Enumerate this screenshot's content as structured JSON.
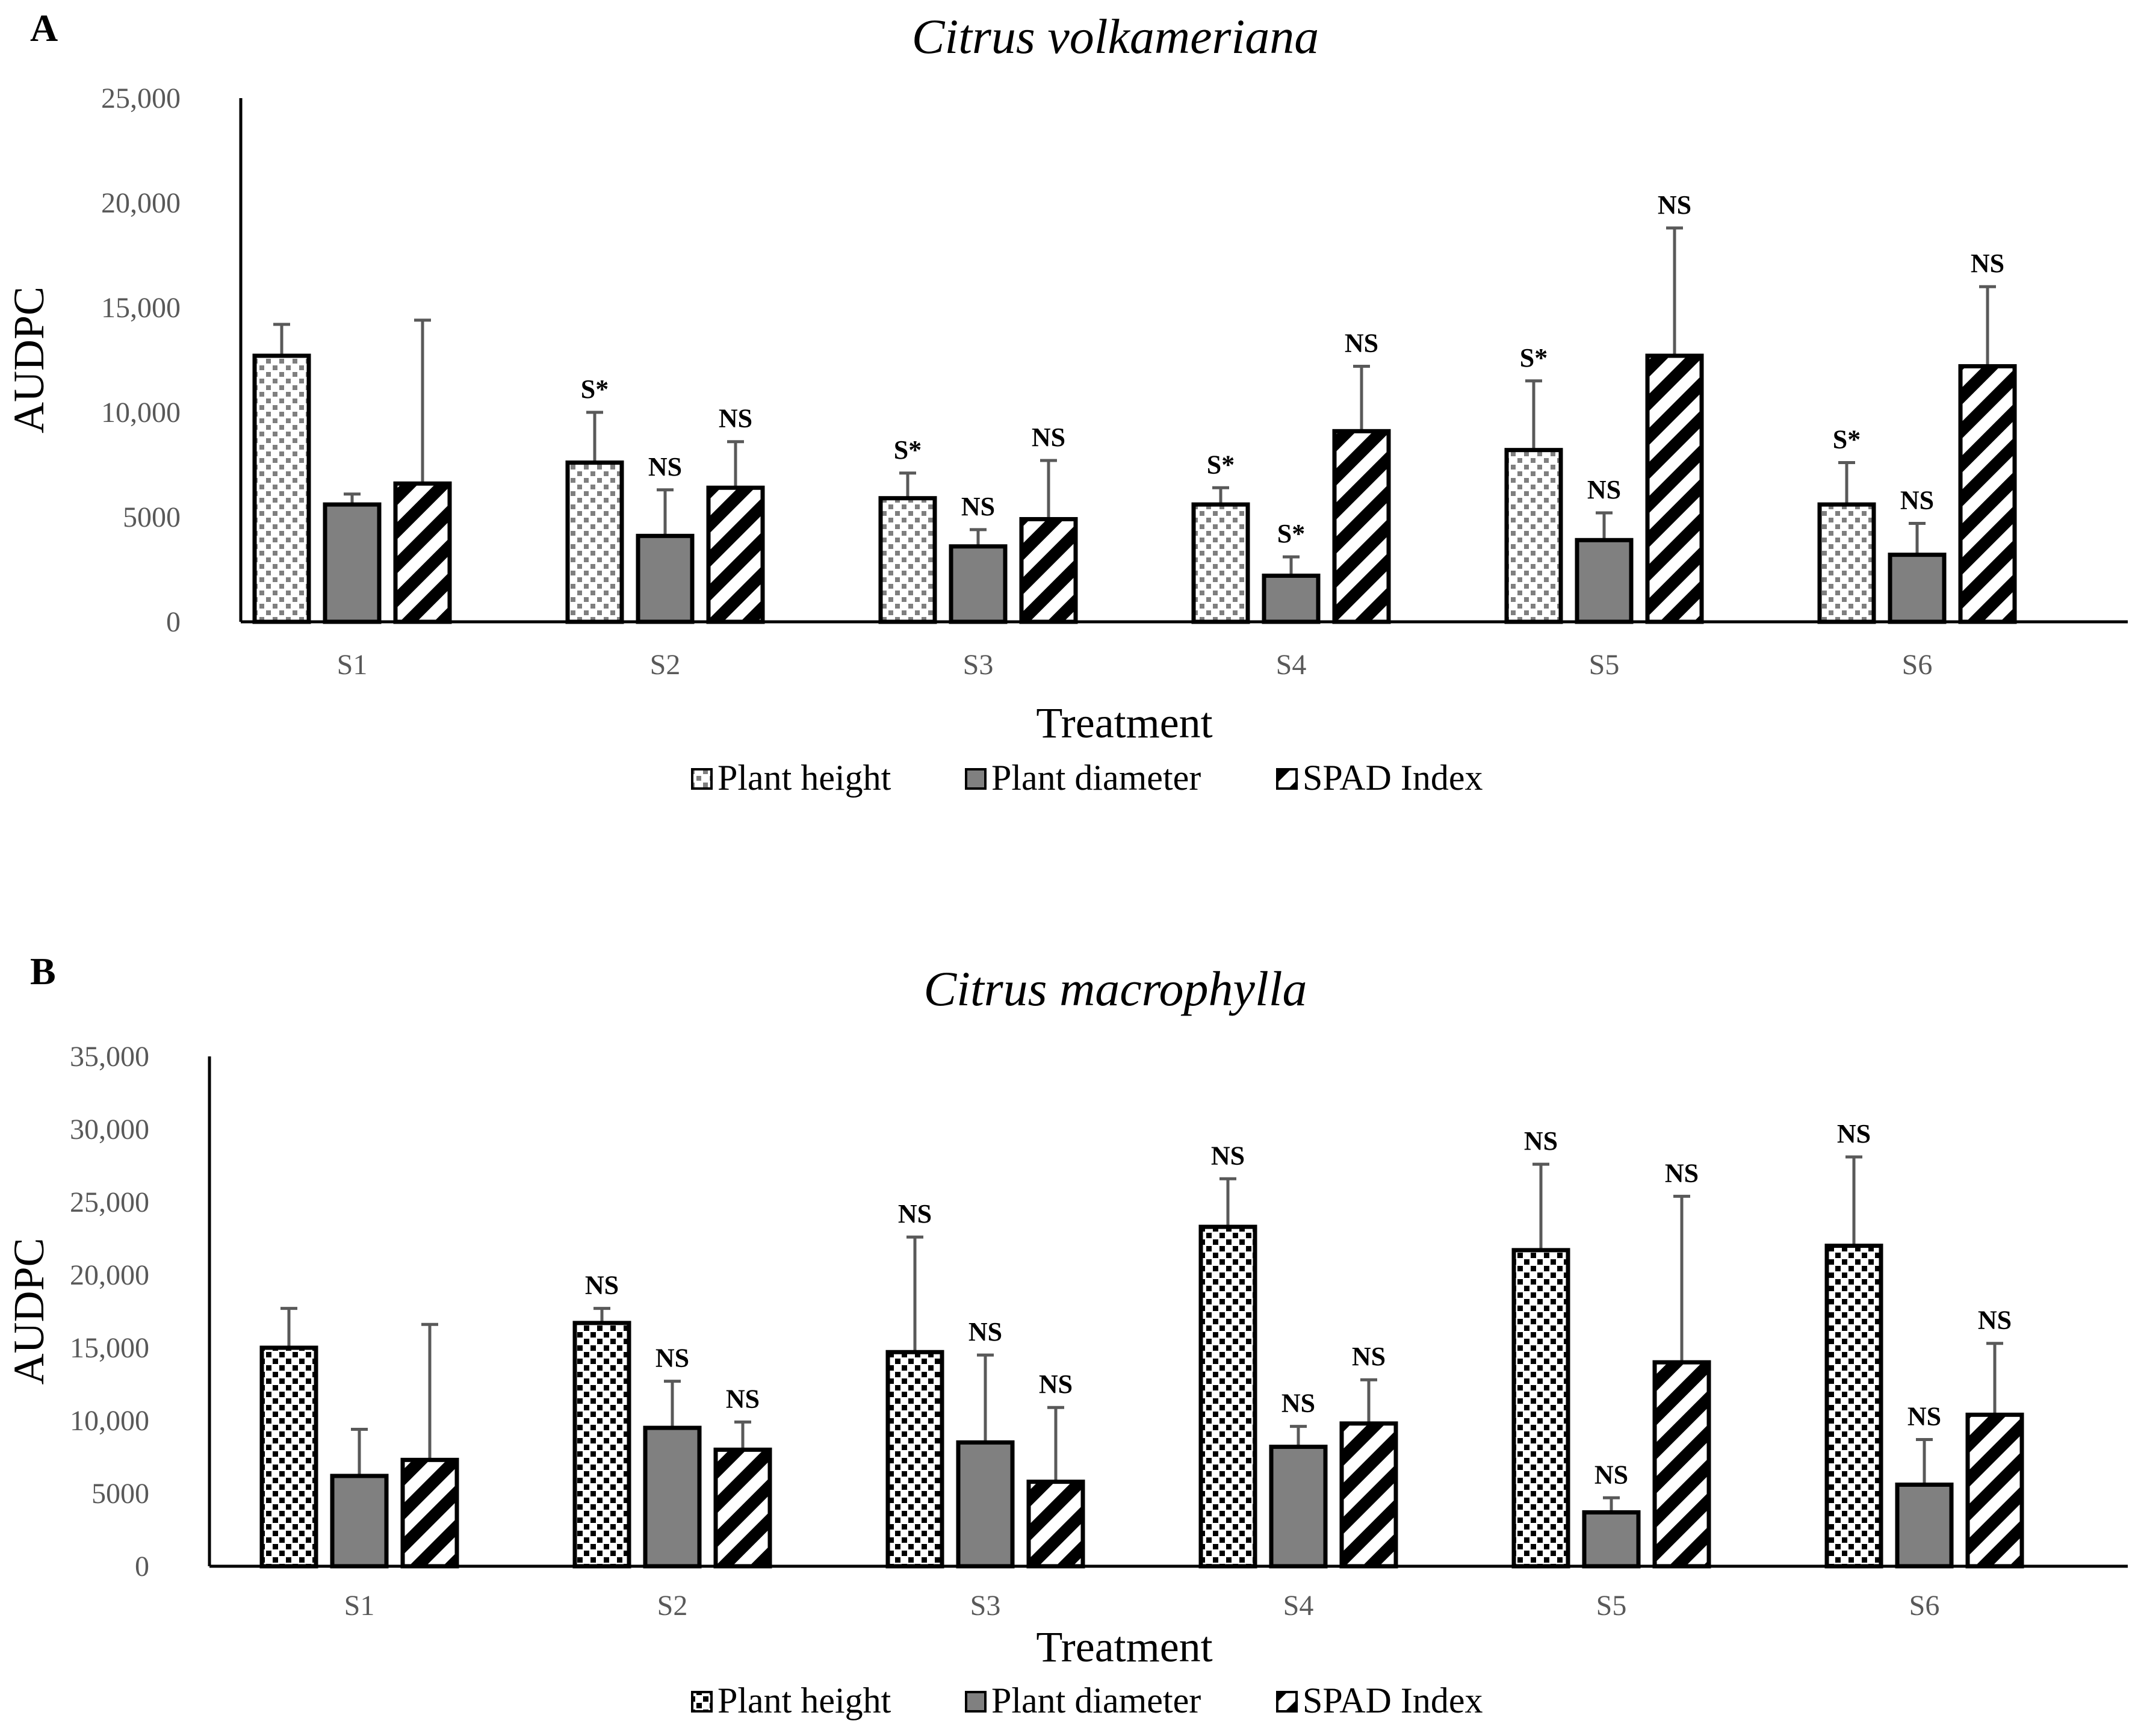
{
  "figure": {
    "panel_letters": [
      "A",
      "B"
    ]
  },
  "chart_data": [
    {
      "type": "bar",
      "title": "Citrus volkameriana",
      "xlabel": "Treatment",
      "ylabel": "AUDPC",
      "ylim": [
        0,
        25000
      ],
      "yticks": [
        0,
        5000,
        10000,
        15000,
        20000,
        25000
      ],
      "ytick_labels": [
        "0",
        "5000",
        "10,000",
        "15,000",
        "20,000",
        "25,000"
      ],
      "categories": [
        "S1",
        "S2",
        "S3",
        "S4",
        "S5",
        "S6"
      ],
      "legend_position": "bottom",
      "series": [
        {
          "name": "Plant height",
          "pattern": "dots-a",
          "values": [
            12700,
            7600,
            5900,
            5600,
            8200,
            5600
          ],
          "errors": [
            1500,
            2400,
            1200,
            800,
            3300,
            2000
          ],
          "labels": [
            "",
            "S*",
            "S*",
            "S*",
            "S*",
            "S*"
          ]
        },
        {
          "name": "Plant diameter",
          "pattern": "solid",
          "values": [
            5600,
            4100,
            3600,
            2200,
            3900,
            3200
          ],
          "errors": [
            500,
            2200,
            800,
            900,
            1300,
            1500
          ],
          "labels": [
            "",
            "NS",
            "NS",
            "S*",
            "NS",
            "NS"
          ]
        },
        {
          "name": "SPAD Index",
          "pattern": "stripes",
          "values": [
            6600,
            6400,
            4900,
            9100,
            12700,
            12200
          ],
          "errors": [
            7800,
            2200,
            2800,
            3100,
            6100,
            3800
          ],
          "labels": [
            "",
            "NS",
            "NS",
            "NS",
            "NS",
            "NS"
          ]
        }
      ]
    },
    {
      "type": "bar",
      "title": "Citrus macrophylla",
      "xlabel": "Treatment",
      "ylabel": "AUDPC",
      "ylim": [
        0,
        35000
      ],
      "yticks": [
        0,
        5000,
        10000,
        15000,
        20000,
        25000,
        30000,
        35000
      ],
      "ytick_labels": [
        "0",
        "5000",
        "10,000",
        "15,000",
        "20,000",
        "25,000",
        "30,000",
        "35,000"
      ],
      "categories": [
        "S1",
        "S2",
        "S3",
        "S4",
        "S5",
        "S6"
      ],
      "legend_position": "bottom",
      "series": [
        {
          "name": "Plant height",
          "pattern": "dots-b",
          "values": [
            15000,
            16700,
            14700,
            23300,
            21700,
            22000
          ],
          "errors": [
            2700,
            1000,
            7900,
            3300,
            5900,
            6100
          ],
          "labels": [
            "",
            "NS",
            "NS",
            "NS",
            "NS",
            "NS"
          ]
        },
        {
          "name": "Plant diameter",
          "pattern": "solid",
          "values": [
            6200,
            9500,
            8500,
            8200,
            3700,
            5600
          ],
          "errors": [
            3200,
            3200,
            6000,
            1400,
            1000,
            3100
          ],
          "labels": [
            "",
            "NS",
            "NS",
            "NS",
            "NS",
            "NS"
          ]
        },
        {
          "name": "SPAD Index",
          "pattern": "stripes",
          "values": [
            7300,
            8000,
            5800,
            9800,
            14000,
            10400
          ],
          "errors": [
            9300,
            1900,
            5100,
            3000,
            11400,
            4900
          ],
          "labels": [
            "",
            "NS",
            "NS",
            "NS",
            "NS",
            "NS"
          ]
        }
      ]
    }
  ]
}
